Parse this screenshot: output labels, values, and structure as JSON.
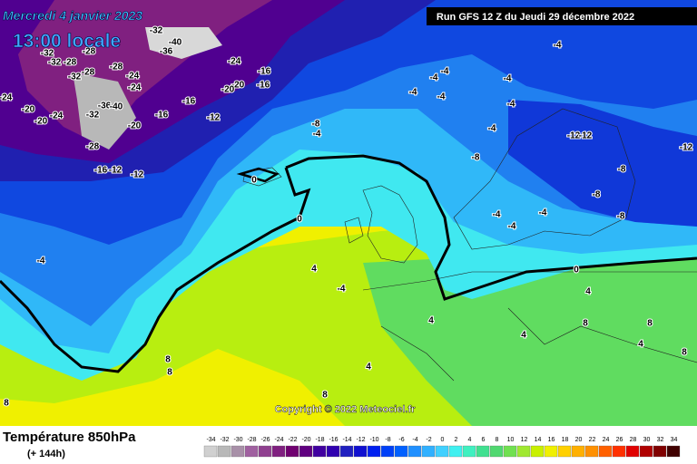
{
  "header": {
    "date": "Mercredi 4 janvier 2023",
    "time": "13:00 locale",
    "run": "Run GFS 12 Z du Jeudi 29 décembre 2022"
  },
  "copyright": "Copyright © 2022 Meteociel.fr",
  "footer": {
    "title": "Température 850hPa",
    "lead": "(+ 144h)"
  },
  "scale": {
    "ticks": [
      -34,
      -32,
      -30,
      -28,
      -26,
      -24,
      -22,
      -20,
      -18,
      -16,
      -14,
      -12,
      -10,
      -8,
      -6,
      -4,
      -2,
      0,
      2,
      4,
      6,
      8,
      10,
      12,
      14,
      16,
      18,
      20,
      22,
      24,
      26,
      28,
      30,
      32,
      34
    ],
    "colors": [
      "#d0d0d0",
      "#b8b8b8",
      "#a890a8",
      "#a060a0",
      "#904090",
      "#802080",
      "#700070",
      "#600080",
      "#4000a0",
      "#3000b0",
      "#2020c0",
      "#1010d0",
      "#0020f0",
      "#0040f8",
      "#0060ff",
      "#2090ff",
      "#30b0ff",
      "#40d0ff",
      "#40f0f0",
      "#40f0c0",
      "#40e090",
      "#50d870",
      "#70e050",
      "#a0e830",
      "#c8f000",
      "#f0f000",
      "#ffd000",
      "#ffb000",
      "#ff9000",
      "#ff6000",
      "#ff3000",
      "#e00000",
      "#b00000",
      "#800000",
      "#400000"
    ]
  },
  "contour_labels": [
    -32,
    -40,
    -36,
    -32,
    -32,
    -28,
    -28,
    -32,
    -28,
    -28,
    -24,
    -24,
    -24,
    -16,
    -16,
    -20,
    -20,
    -24,
    -20,
    -24,
    -20,
    -36,
    -40,
    -32,
    -20,
    -16,
    -16,
    -12,
    -28,
    -16,
    -12,
    -12,
    -8,
    -4,
    -4,
    -4,
    -4,
    -4,
    -4,
    -4,
    -4,
    -4,
    -12,
    -12,
    -12,
    -8,
    -8,
    -8,
    -8,
    -4,
    -4,
    -4,
    0,
    0,
    0,
    -4,
    4,
    -4,
    4,
    4,
    4,
    8,
    8,
    4,
    8,
    8,
    8,
    8,
    8,
    4
  ]
}
